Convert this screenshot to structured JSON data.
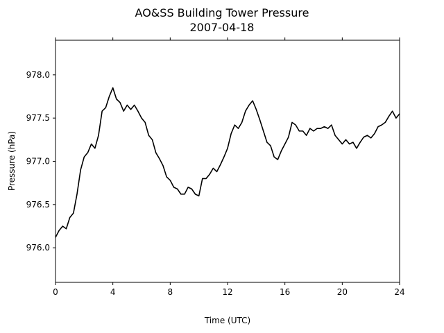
{
  "chart_data": {
    "type": "line",
    "title": "AO&SS Building Tower Pressure",
    "subtitle": "2007-04-18",
    "xlabel": "Time (UTC)",
    "ylabel": "Pressure (hPa)",
    "xlim": [
      0,
      24
    ],
    "ylim": [
      975.6,
      978.4
    ],
    "xticks": [
      0,
      4,
      8,
      12,
      16,
      20,
      24
    ],
    "yticks": [
      976.0,
      976.5,
      977.0,
      977.5,
      978.0
    ],
    "xtick_labels": [
      "0",
      "4",
      "8",
      "12",
      "16",
      "20",
      "24"
    ],
    "ytick_labels": [
      "976.0",
      "976.5",
      "977.0",
      "977.5",
      "978.0"
    ],
    "grid": false,
    "line_color": "#000000",
    "series": [
      {
        "x": [
          0.0,
          0.25,
          0.5,
          0.75,
          1.0,
          1.25,
          1.5,
          1.75,
          2.0,
          2.25,
          2.5,
          2.75,
          3.0,
          3.25,
          3.5,
          3.75,
          4.0,
          4.25,
          4.5,
          4.75,
          5.0,
          5.25,
          5.5,
          5.75,
          6.0,
          6.25,
          6.5,
          6.75,
          7.0,
          7.25,
          7.5,
          7.75,
          8.0,
          8.25,
          8.5,
          8.75,
          9.0,
          9.25,
          9.5,
          9.75,
          10.0,
          10.25,
          10.5,
          10.75,
          11.0,
          11.25,
          11.5,
          11.75,
          12.0,
          12.25,
          12.5,
          12.75,
          13.0,
          13.25,
          13.5,
          13.75,
          14.0,
          14.25,
          14.5,
          14.75,
          15.0,
          15.25,
          15.5,
          15.75,
          16.0,
          16.25,
          16.5,
          16.75,
          17.0,
          17.25,
          17.5,
          17.75,
          18.0,
          18.25,
          18.5,
          18.75,
          19.0,
          19.25,
          19.5,
          19.75,
          20.0,
          20.25,
          20.5,
          20.75,
          21.0,
          21.25,
          21.5,
          21.75,
          22.0,
          22.25,
          22.5,
          22.75,
          23.0,
          23.25,
          23.5,
          23.75,
          24.0
        ],
        "values": [
          976.12,
          976.2,
          976.25,
          976.22,
          976.35,
          976.4,
          976.62,
          976.9,
          977.05,
          977.1,
          977.2,
          977.15,
          977.3,
          977.58,
          977.62,
          977.75,
          977.85,
          977.72,
          977.68,
          977.58,
          977.65,
          977.6,
          977.65,
          977.58,
          977.5,
          977.45,
          977.3,
          977.25,
          977.1,
          977.03,
          976.95,
          976.82,
          976.78,
          976.7,
          976.68,
          976.62,
          976.62,
          976.7,
          976.68,
          976.62,
          976.6,
          976.8,
          976.8,
          976.85,
          976.92,
          976.88,
          976.96,
          977.05,
          977.15,
          977.32,
          977.42,
          977.38,
          977.45,
          977.58,
          977.65,
          977.7,
          977.6,
          977.48,
          977.35,
          977.22,
          977.18,
          977.05,
          977.02,
          977.12,
          977.2,
          977.28,
          977.45,
          977.42,
          977.35,
          977.35,
          977.3,
          977.38,
          977.35,
          977.38,
          977.38,
          977.4,
          977.38,
          977.42,
          977.3,
          977.25,
          977.2,
          977.25,
          977.2,
          977.22,
          977.15,
          977.22,
          977.28,
          977.3,
          977.27,
          977.32,
          977.4,
          977.42,
          977.45,
          977.52,
          977.58,
          977.5,
          977.55
        ]
      }
    ]
  }
}
